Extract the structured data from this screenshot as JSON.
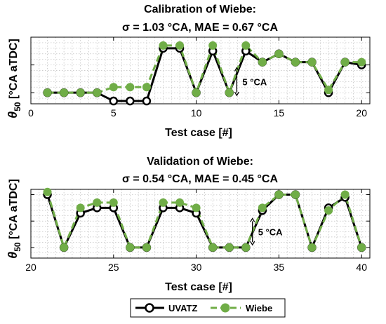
{
  "colors": {
    "uvatz": "#000000",
    "wiebe": "#70ad47"
  },
  "legend": {
    "items": [
      "UVATZ",
      "Wiebe"
    ],
    "placement": "bottom-center"
  },
  "chart_data": [
    {
      "type": "line",
      "title_line1": "Calibration of Wiebe:",
      "title_line2": "σ = 1.03 °CA, MAE = 0.67 °CA",
      "xlabel": "Test case [#]",
      "ylabel_main": "θ",
      "ylabel_sub": "50",
      "ylabel_rest": " [°CA aTDC]",
      "annotation": "5 °CA",
      "xlim": [
        0,
        20.5
      ],
      "xticks": [
        0,
        5,
        10,
        15,
        20
      ],
      "ylim": [
        -2,
        10
      ],
      "grid": true,
      "x": [
        1,
        2,
        3,
        4,
        5,
        6,
        7,
        8,
        9,
        10,
        11,
        12,
        13,
        14,
        15,
        16,
        17,
        18,
        19,
        20
      ],
      "series": [
        {
          "name": "UVATZ",
          "values": [
            0,
            0,
            0,
            0,
            -1.5,
            -1.5,
            -1.5,
            8,
            8,
            0,
            7.5,
            0,
            7.5,
            5.5,
            7,
            5.5,
            5.5,
            0,
            5.5,
            5
          ]
        },
        {
          "name": "Wiebe",
          "values": [
            0,
            0,
            0,
            0,
            1,
            1,
            1,
            8.5,
            8.5,
            0,
            8.5,
            0,
            8.5,
            5.5,
            7,
            5.5,
            5.5,
            0.5,
            5.5,
            5.5
          ]
        }
      ]
    },
    {
      "type": "line",
      "title_line1": "Validation of Wiebe:",
      "title_line2": "σ = 0.54 °CA, MAE = 0.45 °CA",
      "xlabel": "Test case [#]",
      "ylabel_main": "θ",
      "ylabel_sub": "50",
      "ylabel_rest": " [°CA aTDC]",
      "annotation": "5 °CA",
      "xlim": [
        20,
        40.5
      ],
      "xticks": [
        20,
        25,
        30,
        35,
        40
      ],
      "ylim": [
        -2,
        11
      ],
      "grid": true,
      "x": [
        21,
        22,
        23,
        24,
        25,
        26,
        27,
        28,
        29,
        30,
        31,
        32,
        33,
        34,
        35,
        36,
        37,
        38,
        39,
        40
      ],
      "series": [
        {
          "name": "UVATZ",
          "values": [
            10,
            0,
            6.5,
            7.5,
            7.5,
            0,
            0,
            7.5,
            7.5,
            6.5,
            0,
            0,
            0,
            7,
            10,
            10,
            0,
            7.5,
            9.5,
            0
          ]
        },
        {
          "name": "Wiebe",
          "values": [
            10.5,
            0,
            7.5,
            8.5,
            8.5,
            0,
            0,
            8.5,
            8.5,
            7.5,
            0,
            0,
            0,
            7.5,
            10,
            10,
            0,
            7,
            10,
            0
          ]
        }
      ]
    }
  ]
}
